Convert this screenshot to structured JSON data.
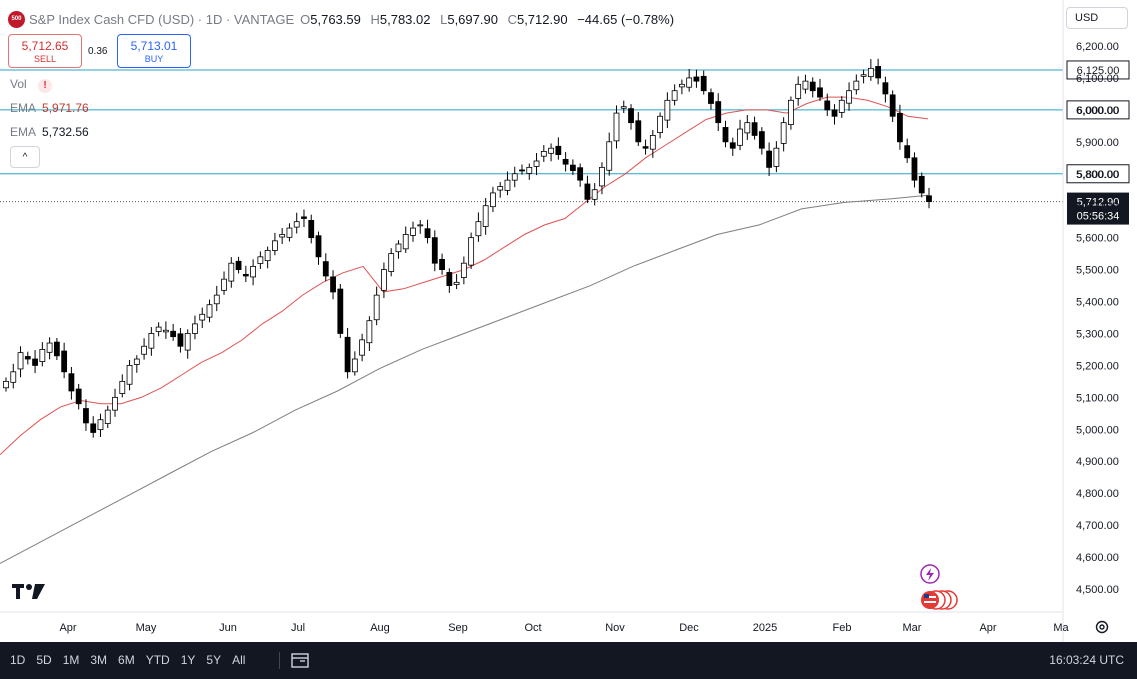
{
  "header": {
    "logo_text": "500",
    "title": "S&P Index Cash CFD (USD) · 1D · VANTAGE",
    "o_label": "O",
    "o_value": "5,763.59",
    "h_label": "H",
    "h_value": "5,783.02",
    "l_label": "L",
    "l_value": "5,697.90",
    "c_label": "C",
    "c_value": "5,712.90",
    "change": "−44.65 (−0.78%)"
  },
  "trade": {
    "sell_price": "5,712.65",
    "sell_label": "SELL",
    "spread": "0.36",
    "buy_price": "5,713.01",
    "buy_label": "BUY"
  },
  "legend": {
    "vol_label": "Vol",
    "warn_icon": "!",
    "ema1_label": "EMA",
    "ema1_value": "5,971.76",
    "ema2_label": "EMA",
    "ema2_value": "5,732.56",
    "collapse_icon": "^"
  },
  "currency": "USD",
  "bottom": {
    "ranges": [
      "1D",
      "5D",
      "1M",
      "3M",
      "6M",
      "YTD",
      "1Y",
      "5Y",
      "All"
    ],
    "clock": "16:03:24 UTC"
  },
  "colors": {
    "up_candle": "#ffffff",
    "down_candle": "#000000",
    "candle_border": "#000000",
    "ema_fast": "#e05252",
    "ema_slow": "#7f7f7f",
    "hline": "#26a6c8",
    "bottom_bar": "#131722",
    "price_tag": "#131722"
  },
  "chart_data": {
    "type": "candlestick",
    "y_scale": {
      "min": 4430,
      "max": 6240
    },
    "y_ticks": [
      4500,
      4600,
      4700,
      4800,
      4900,
      5000,
      5100,
      5200,
      5300,
      5400,
      5500,
      5600,
      5700,
      5800,
      5900,
      6000,
      6100,
      6200
    ],
    "y_tick_labels": [
      "4,500.00",
      "4,600.00",
      "4,700.00",
      "4,800.00",
      "4,900.00",
      "5,000.00",
      "5,100.00",
      "5,200.00",
      "5,300.00",
      "5,400.00",
      "5,500.00",
      "5,600.00",
      "5,700.00",
      "5,800.00",
      "5,900.00",
      "6,000.00",
      "6,100.00",
      "6,200.00"
    ],
    "x_labels": [
      "Apr",
      "May",
      "Jun",
      "Jul",
      "Aug",
      "Sep",
      "Oct",
      "Nov",
      "Dec",
      "2025",
      "Feb",
      "Mar",
      "Apr",
      "Ma"
    ],
    "horizontal_levels": [
      {
        "value": 6125,
        "label": "6,125.00"
      },
      {
        "value": 6000,
        "label": "6,000.00"
      },
      {
        "value": 5800,
        "label": "5,800.00"
      }
    ],
    "last_price": {
      "value": 5712.9,
      "label": "5,712.90",
      "countdown": "05:56:34"
    },
    "ohlc_path": [
      5150,
      5180,
      5240,
      5220,
      5200,
      5250,
      5270,
      5230,
      5180,
      5120,
      5080,
      5020,
      4990,
      5030,
      5060,
      5100,
      5150,
      5200,
      5220,
      5260,
      5300,
      5320,
      5310,
      5290,
      5260,
      5300,
      5330,
      5360,
      5390,
      5420,
      5470,
      5520,
      5500,
      5480,
      5510,
      5540,
      5560,
      5590,
      5610,
      5630,
      5650,
      5660,
      5600,
      5540,
      5480,
      5430,
      5300,
      5180,
      5220,
      5280,
      5340,
      5420,
      5500,
      5550,
      5580,
      5610,
      5630,
      5640,
      5600,
      5520,
      5500,
      5450,
      5460,
      5520,
      5600,
      5650,
      5700,
      5740,
      5760,
      5780,
      5800,
      5810,
      5820,
      5840,
      5870,
      5880,
      5860,
      5830,
      5810,
      5780,
      5720,
      5750,
      5820,
      5900,
      5990,
      6010,
      5960,
      5900,
      5880,
      5920,
      5980,
      6030,
      6060,
      6080,
      6100,
      6090,
      6060,
      6020,
      5960,
      5900,
      5880,
      5940,
      5960,
      5920,
      5880,
      5820,
      5880,
      5960,
      6030,
      6080,
      6090,
      6060,
      6040,
      6000,
      5980,
      6030,
      6060,
      6090,
      6110,
      6130,
      6100,
      6050,
      5980,
      5900,
      5850,
      5780,
      5740,
      5712.9
    ],
    "ema_fast_path": [
      4920,
      4980,
      5030,
      5070,
      5090,
      5080,
      5080,
      5100,
      5130,
      5170,
      5210,
      5240,
      5280,
      5330,
      5370,
      5420,
      5460,
      5490,
      5510,
      5430,
      5440,
      5460,
      5480,
      5500,
      5530,
      5570,
      5610,
      5640,
      5660,
      5710,
      5760,
      5800,
      5850,
      5890,
      5930,
      5970,
      5990,
      6000,
      6000,
      5990,
      6020,
      6040,
      6040,
      6030,
      6010,
      5980,
      5971.76
    ],
    "ema_slow_path": [
      4580,
      4650,
      4720,
      4790,
      4860,
      4930,
      4990,
      5060,
      5120,
      5190,
      5250,
      5300,
      5350,
      5400,
      5450,
      5510,
      5560,
      5610,
      5640,
      5690,
      5710,
      5720,
      5732.56
    ],
    "series": [
      {
        "name": "EMA",
        "last_value": 5971.76
      },
      {
        "name": "EMA",
        "last_value": 5732.56
      }
    ]
  }
}
